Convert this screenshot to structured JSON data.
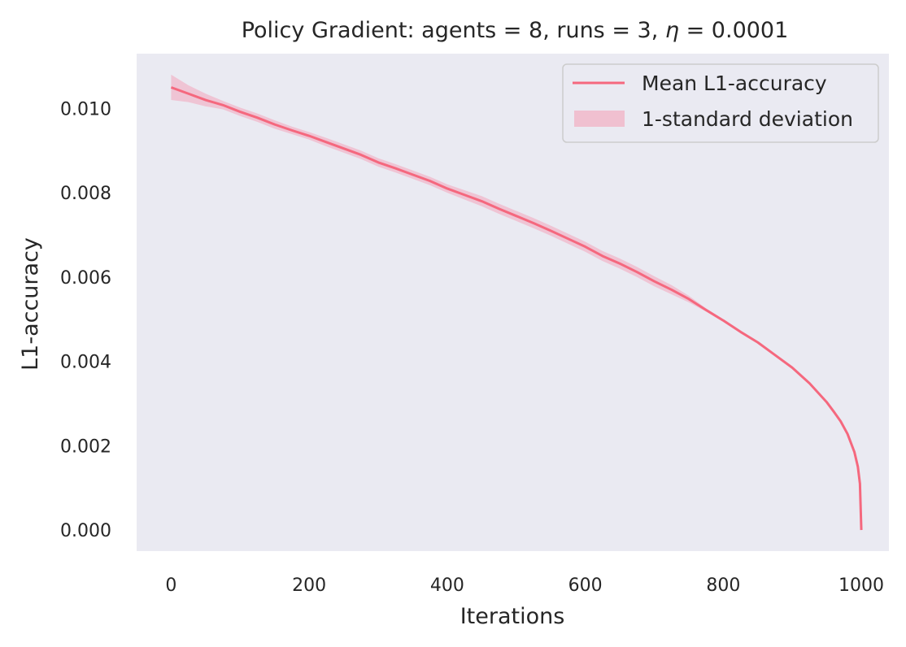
{
  "chart_data": {
    "type": "line",
    "title_text": "Policy Gradient: agents = 8, runs = 3, ",
    "title_symbol": "η",
    "title_suffix": " = 0.0001",
    "xlabel": "Iterations",
    "ylabel": "L1-accuracy",
    "xlim": [
      -50,
      1040
    ],
    "ylim": [
      -0.0005,
      0.0113
    ],
    "x_ticks": [
      0,
      200,
      400,
      600,
      800,
      1000
    ],
    "x_tick_labels": [
      "0",
      "200",
      "400",
      "600",
      "800",
      "1000"
    ],
    "y_ticks": [
      0.0,
      0.002,
      0.004,
      0.006,
      0.008,
      0.01
    ],
    "y_tick_labels": [
      "0.000",
      "0.002",
      "0.004",
      "0.006",
      "0.008",
      "0.010"
    ],
    "grid": false,
    "legend_position": "top-right",
    "series": [
      {
        "name": "Mean L1-accuracy",
        "color": "#f5687e",
        "x": [
          0,
          25,
          50,
          75,
          100,
          125,
          150,
          175,
          200,
          225,
          250,
          275,
          300,
          325,
          350,
          375,
          400,
          425,
          450,
          475,
          500,
          525,
          550,
          575,
          600,
          625,
          650,
          675,
          700,
          725,
          750,
          775,
          800,
          825,
          850,
          875,
          900,
          925,
          950,
          960,
          970,
          980,
          990,
          995,
          998,
          1000
        ],
        "y": [
          0.0105,
          0.01035,
          0.0102,
          0.01008,
          0.00992,
          0.00978,
          0.00962,
          0.00948,
          0.00935,
          0.0092,
          0.00905,
          0.0089,
          0.00872,
          0.00858,
          0.00843,
          0.00828,
          0.0081,
          0.00795,
          0.0078,
          0.00762,
          0.00745,
          0.00728,
          0.0071,
          0.00691,
          0.00672,
          0.0065,
          0.00632,
          0.00612,
          0.0059,
          0.0057,
          0.00548,
          0.00522,
          0.00497,
          0.0047,
          0.00445,
          0.00415,
          0.00385,
          0.00348,
          0.00303,
          0.00281,
          0.00258,
          0.00228,
          0.00185,
          0.0015,
          0.0011,
          0.0
        ]
      }
    ],
    "band": {
      "name": "1-standard deviation",
      "color": "#f0c0d0",
      "x": [
        0,
        25,
        50,
        75,
        100,
        125,
        150,
        175,
        200,
        225,
        250,
        275,
        300,
        325,
        350,
        375,
        400,
        425,
        450,
        475,
        500,
        525,
        550,
        575,
        600,
        625,
        650,
        675,
        700,
        725,
        750,
        775,
        800,
        825,
        850,
        875,
        900,
        925,
        950,
        960,
        970,
        980,
        990,
        995,
        998,
        1000
      ],
      "upper": [
        0.0108,
        0.01055,
        0.01035,
        0.01018,
        0.01002,
        0.00988,
        0.00972,
        0.00957,
        0.00944,
        0.0093,
        0.00915,
        0.009,
        0.00882,
        0.00868,
        0.00853,
        0.00838,
        0.0082,
        0.00806,
        0.00792,
        0.00774,
        0.00757,
        0.0074,
        0.00722,
        0.00703,
        0.00684,
        0.00662,
        0.00644,
        0.00624,
        0.00602,
        0.00581,
        0.00556,
        0.00526,
        0.005,
        0.00473,
        0.00447,
        0.00417,
        0.00387,
        0.0035,
        0.00305,
        0.00283,
        0.0026,
        0.0023,
        0.00187,
        0.00152,
        0.00112,
        0.0001
      ],
      "lower": [
        0.0102,
        0.01015,
        0.01005,
        0.00998,
        0.00982,
        0.00968,
        0.00952,
        0.00939,
        0.00926,
        0.0091,
        0.00895,
        0.0088,
        0.00862,
        0.00848,
        0.00833,
        0.00818,
        0.008,
        0.00784,
        0.00768,
        0.0075,
        0.00733,
        0.00716,
        0.00698,
        0.00679,
        0.0066,
        0.00638,
        0.0062,
        0.006,
        0.00578,
        0.00559,
        0.0054,
        0.00518,
        0.00494,
        0.00467,
        0.00443,
        0.00413,
        0.00383,
        0.00346,
        0.00301,
        0.00279,
        0.00256,
        0.00226,
        0.00183,
        0.00148,
        0.00108,
        0.0
      ]
    },
    "legend": [
      {
        "label": "Mean L1-accuracy",
        "kind": "line"
      },
      {
        "label": "1-standard deviation",
        "kind": "patch"
      }
    ]
  },
  "style": {
    "plot_background": "#eaeaf2",
    "text_color": "#262626",
    "legend_border": "#cccccc",
    "legend_background": "#eaeaf2"
  }
}
